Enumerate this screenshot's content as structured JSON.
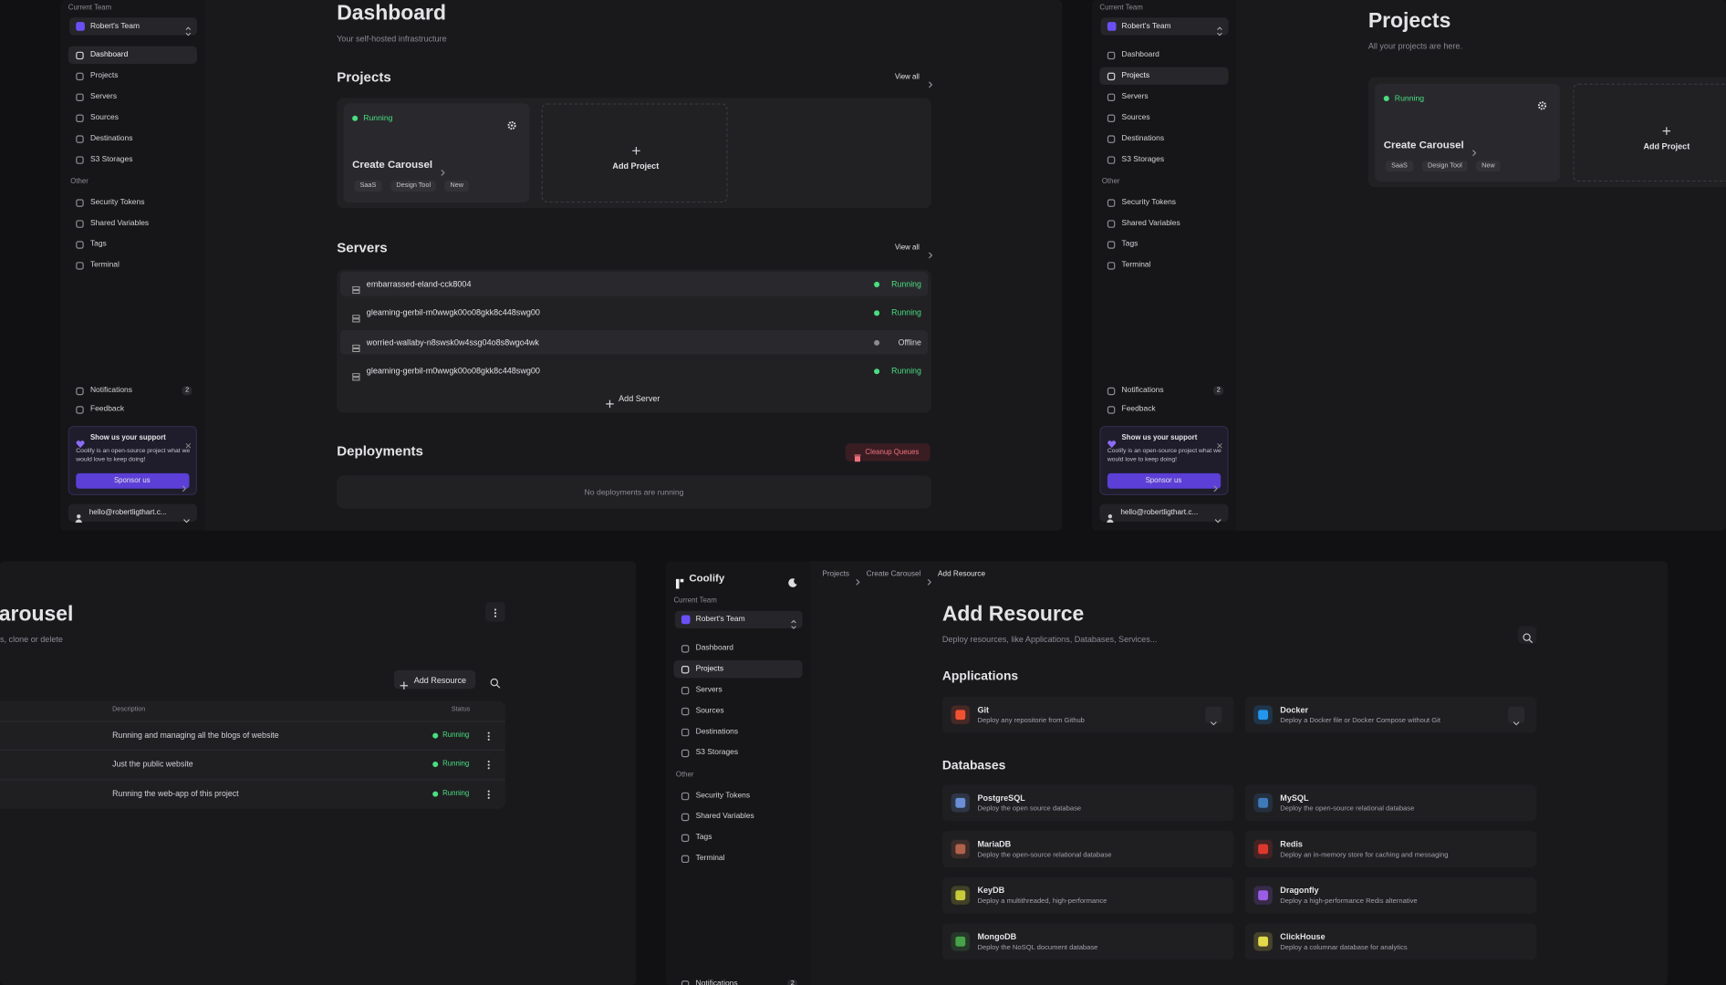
{
  "sidebar": {
    "team_label": "Current Team",
    "team": "Robert's Team",
    "nav": [
      "Dashboard",
      "Projects",
      "Servers",
      "Sources",
      "Destinations",
      "S3 Storages"
    ],
    "other_label": "Other",
    "other": [
      "Security Tokens",
      "Shared Variables",
      "Tags",
      "Terminal"
    ],
    "notifications": "Notifications",
    "notification_count": "2",
    "feedback": "Feedback",
    "support": {
      "title": "Show us your support",
      "text": "Coolify is an open-source project what we would love to keep doing!",
      "button": "Sponsor us"
    },
    "account": "hello@robertligthart.c..."
  },
  "dashboard": {
    "title": "Dashboard",
    "subtitle": "Your self-hosted infrastructure",
    "projects_heading": "Projects",
    "view_all": "View all",
    "project": {
      "status": "Running",
      "name": "Create Carousel",
      "tags": [
        "SaaS",
        "Design Tool",
        "New"
      ]
    },
    "add_project": "Add Project",
    "servers_heading": "Servers",
    "servers": [
      {
        "name": "embarrassed-eland-cck8004",
        "status": "Running"
      },
      {
        "name": "gleaming-gerbil-m0wwgk00o08gkk8c448swg00",
        "status": "Running"
      },
      {
        "name": "worried-wallaby-n8swsk0w4ssg04o8s8wgo4wk",
        "status": "Offline"
      },
      {
        "name": "gleaming-gerbil-m0wwgk00o08gkk8c448swg00",
        "status": "Running"
      }
    ],
    "add_server": "Add Server",
    "deployments_heading": "Deployments",
    "cleanup": "Cleanup Queues",
    "empty": "No deployments are running"
  },
  "projects_page": {
    "title": "Projects",
    "subtitle": "All your projects are here."
  },
  "project_detail": {
    "title": "arousel",
    "subtitle": "s, clone or delete",
    "add_resource": "Add Resource",
    "columns": [
      "Description",
      "Status"
    ],
    "rows": [
      {
        "description": "Running and managing all the blogs of website",
        "status": "Running"
      },
      {
        "description": "Just the public website",
        "status": "Running"
      },
      {
        "description": "Running the web-app of this project",
        "status": "Running"
      }
    ]
  },
  "add_resource": {
    "brand": "Coolify",
    "breadcrumbs": [
      "Projects",
      "Create Carousel",
      "Add Resource"
    ],
    "title": "Add Resource",
    "subtitle": "Deploy resources, like Applications, Databases, Services...",
    "applications_heading": "Applications",
    "applications": [
      {
        "name": "Git",
        "description": "Deploy any repositorie from Github"
      },
      {
        "name": "Docker",
        "description": "Deploy a Docker file or Docker Compose without Git"
      }
    ],
    "databases_heading": "Databases",
    "databases": [
      {
        "name": "PostgreSQL",
        "description": "Deploy the open source database"
      },
      {
        "name": "MySQL",
        "description": "Deploy the open-source relational database"
      },
      {
        "name": "MariaDB",
        "description": "Deploy the open-source relational database"
      },
      {
        "name": "Redis",
        "description": "Deploy an in-memory store for caching and messaging"
      },
      {
        "name": "KeyDB",
        "description": "Deploy a multithreaded, high-performance"
      },
      {
        "name": "Dragonfly",
        "description": "Deploy a high-performance Redis alternative"
      },
      {
        "name": "MongoDB",
        "description": "Deploy the NoSQL document database"
      },
      {
        "name": "ClickHouse",
        "description": "Deploy a columnar database for analytics"
      }
    ]
  }
}
